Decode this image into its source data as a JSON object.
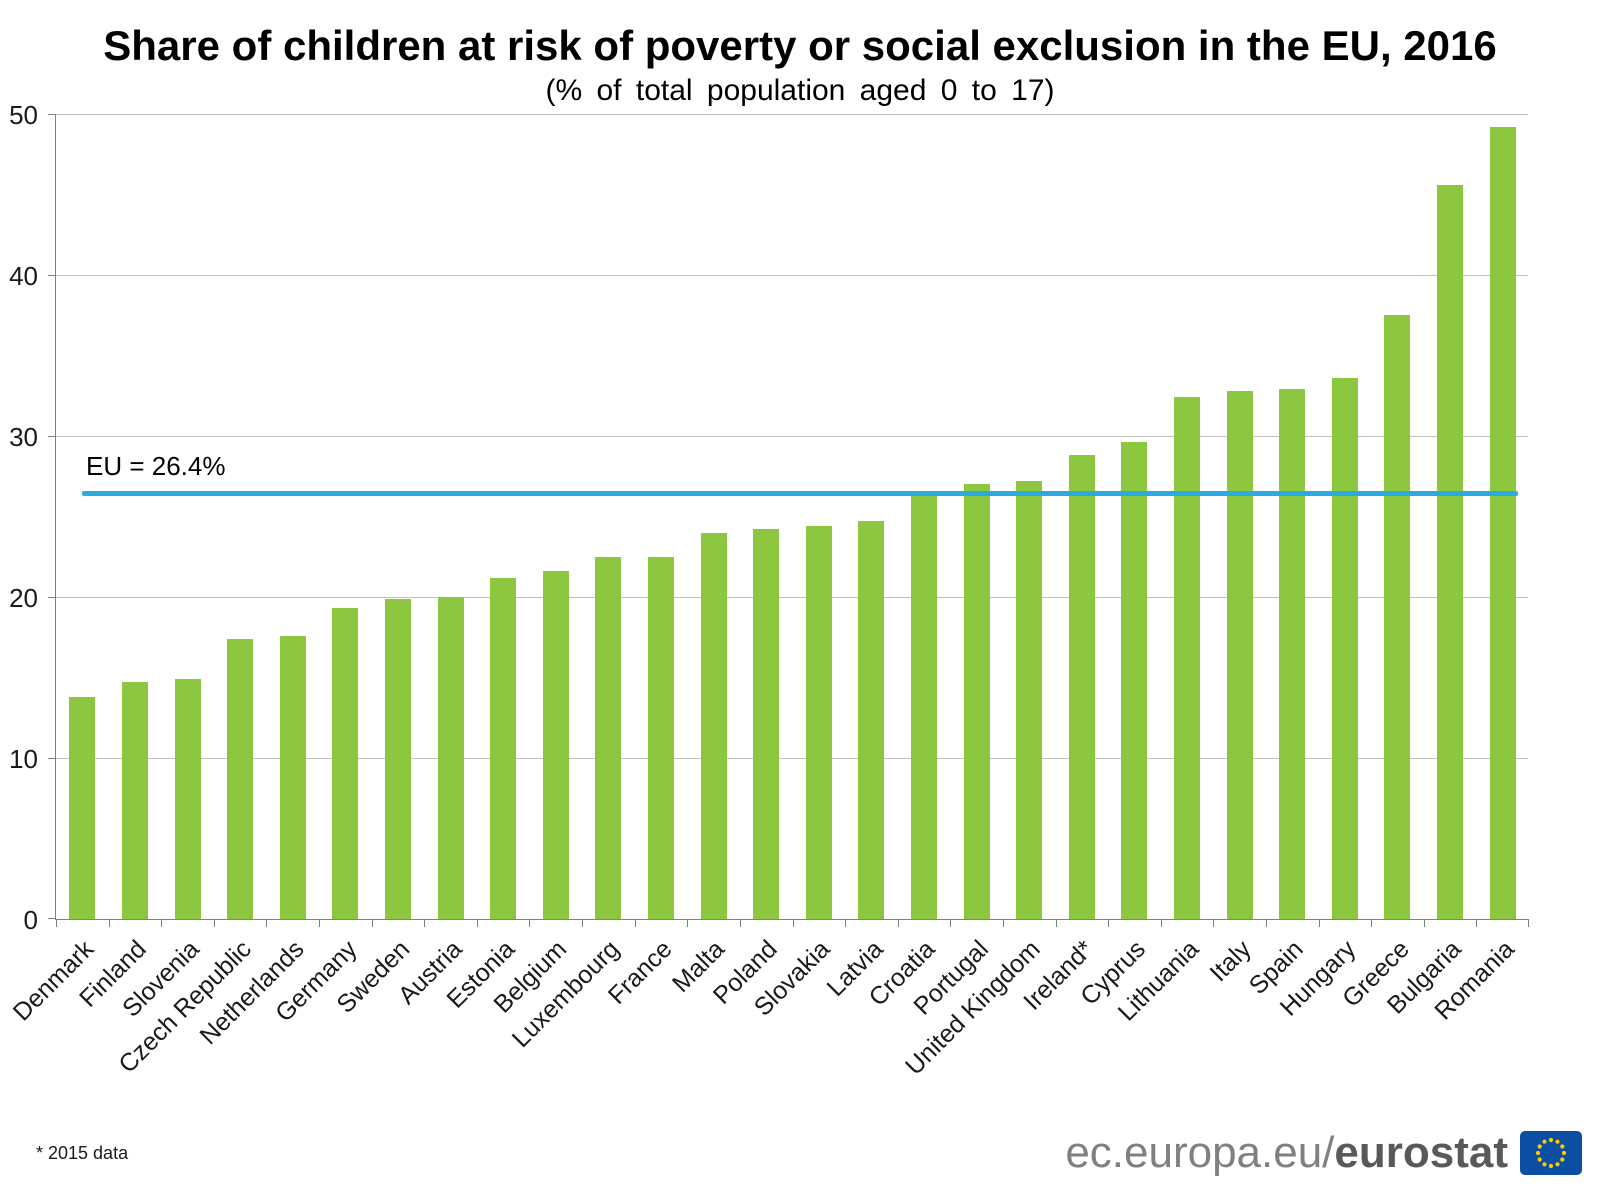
{
  "chart_data": {
    "type": "bar",
    "title": "Share of children at risk of poverty or social exclusion in the EU, 2016",
    "subtitle": "(% of total population aged 0 to 17)",
    "categories": [
      "Denmark",
      "Finland",
      "Slovenia",
      "Czech Republic",
      "Netherlands",
      "Germany",
      "Sweden",
      "Austria",
      "Estonia",
      "Belgium",
      "Luxembourg",
      "France",
      "Malta",
      "Poland",
      "Slovakia",
      "Latvia",
      "Croatia",
      "Portugal",
      "United Kingdom",
      "Ireland*",
      "Cyprus",
      "Lithuania",
      "Italy",
      "Spain",
      "Hungary",
      "Greece",
      "Bulgaria",
      "Romania"
    ],
    "values": [
      13.8,
      14.7,
      14.9,
      17.4,
      17.6,
      19.3,
      19.9,
      20.0,
      21.2,
      21.6,
      22.5,
      22.5,
      24.0,
      24.2,
      24.4,
      24.7,
      26.3,
      27.0,
      27.2,
      28.8,
      29.6,
      32.4,
      32.8,
      32.9,
      33.6,
      37.5,
      45.6,
      49.2
    ],
    "xlabel": "",
    "ylabel": "",
    "ylim": [
      0,
      50
    ],
    "yticks": [
      0,
      10,
      20,
      30,
      40,
      50
    ],
    "grid": true,
    "legend": "none",
    "bar_color": "#8DC63F",
    "reference_line": {
      "label": "EU = 26.4%",
      "value": 26.4,
      "color": "#29ABE2"
    }
  },
  "footer": {
    "footnote": "* 2015 data",
    "brand_prefix": "ec.europa.eu/",
    "brand_bold": "eurostat"
  },
  "icons": {
    "eu_flag": "eu-flag-logo",
    "flag_blue": "#0B4EA2",
    "star_yellow": "#FFCC00"
  }
}
